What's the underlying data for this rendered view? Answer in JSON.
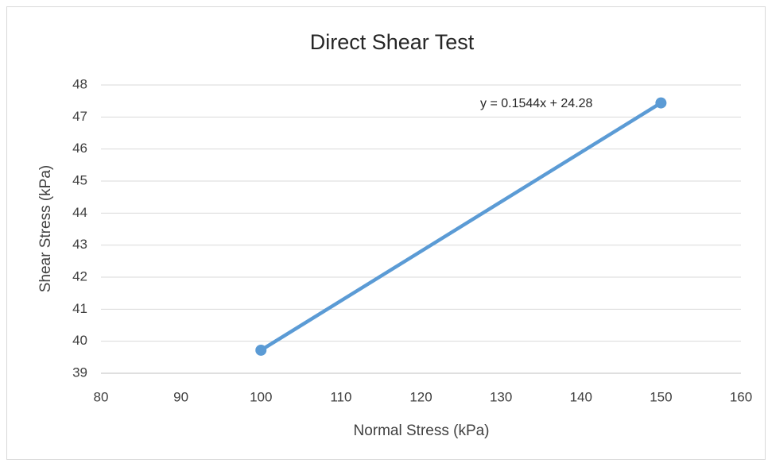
{
  "chart_data": {
    "type": "scatter-line",
    "title": "Direct Shear Test",
    "x_label": "Normal Stress (kPa)",
    "y_label": "Shear Stress (kPa)",
    "annotation": "y = 0.1544x + 24.28",
    "x": [
      100,
      150
    ],
    "series": [
      {
        "color": "#5b9bd5",
        "values": [
          39.72,
          47.44
        ]
      }
    ],
    "xlim": [
      80,
      160
    ],
    "xticks": [
      80,
      90,
      100,
      110,
      120,
      130,
      140,
      150,
      160
    ],
    "ylim": [
      39,
      48
    ],
    "yticks": [
      39,
      40,
      41,
      42,
      43,
      44,
      45,
      46,
      47,
      48
    ],
    "grid": true
  }
}
